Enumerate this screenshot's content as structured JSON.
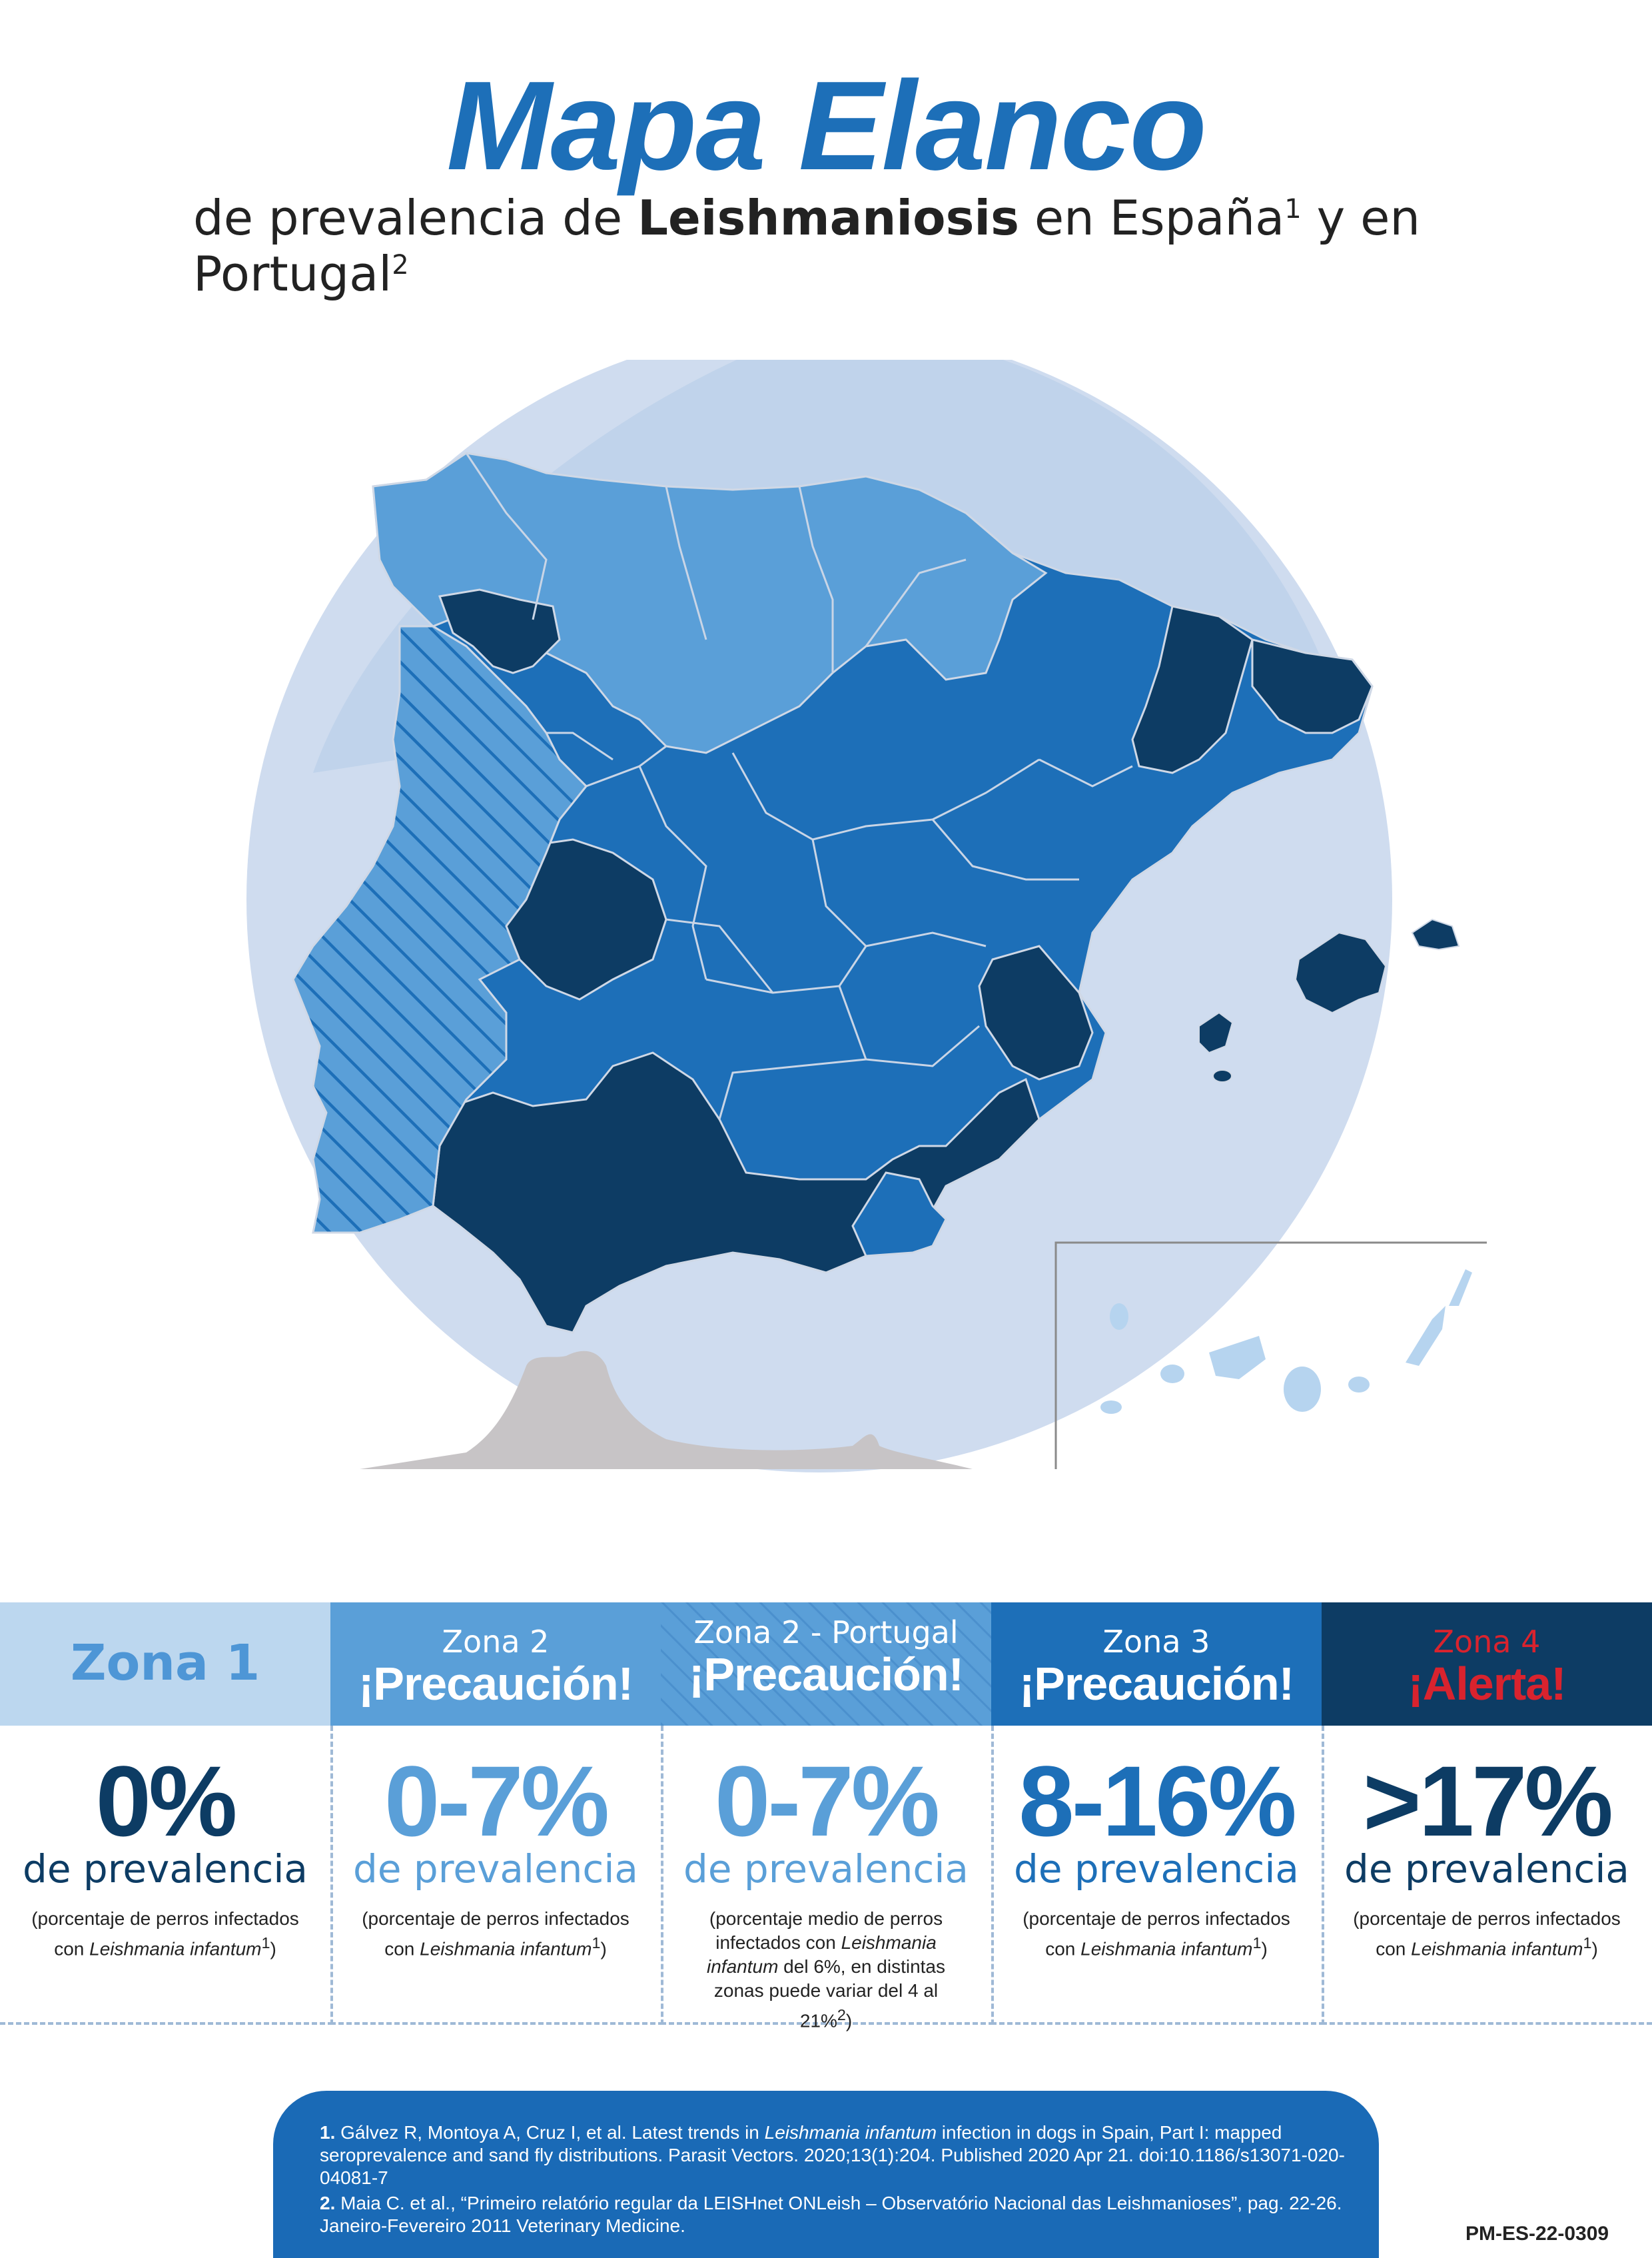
{
  "header": {
    "title": "Mapa Elanco",
    "subtitle_pre": "de prevalencia de ",
    "subtitle_bold": "Leishmaniosis",
    "subtitle_mid": " en España",
    "sup1": "1",
    "subtitle_mid2": "  y en Portugal",
    "sup2": "2"
  },
  "colors": {
    "zone1": "#bcd7ef",
    "zone2": "#5a9fd8",
    "zone3": "#1d6fb8",
    "zone4": "#0d3c64",
    "alert_red": "#d9232e",
    "sea_circle": "#cfdcef",
    "africa": "#c7c4c6",
    "canary": "#b6d4ef"
  },
  "zones": [
    {
      "name": "Zona 1",
      "alert": "",
      "value": "0%",
      "prev": "de prevalencia",
      "note_a": "(porcentaje de perros infectados",
      "note_b": "con ",
      "note_i": "Leishmania infantum",
      "note_sup": "1",
      "note_c": ")"
    },
    {
      "name": "Zona 2",
      "alert": "¡Precaución!",
      "value": "0-7%",
      "prev": "de prevalencia",
      "note_a": "(porcentaje de perros infectados",
      "note_b": "con ",
      "note_i": "Leishmania infantum",
      "note_sup": "1",
      "note_c": ")"
    },
    {
      "name": "Zona 2 - Portugal",
      "alert": "¡Precaución!",
      "value": "0-7%",
      "prev": "de prevalencia",
      "note_a": "(porcentaje medio de perros",
      "note_b": "infectados con ",
      "note_i": "Leishmania infantum",
      "note_c": " del 6%, en distintas zonas puede variar del 4 al 21%",
      "note_sup": "2",
      "note_d": ")"
    },
    {
      "name": "Zona 3",
      "alert": "¡Precaución!",
      "value": "8-16%",
      "prev": "de prevalencia",
      "note_a": "(porcentaje de perros infectados",
      "note_b": "con ",
      "note_i": "Leishmania infantum",
      "note_sup": "1",
      "note_c": ")"
    },
    {
      "name": "Zona 4",
      "alert": "¡Alerta!",
      "value": ">17%",
      "prev": "de prevalencia",
      "note_a": "(porcentaje de perros infectados",
      "note_b": "con ",
      "note_i": "Leishmania infantum",
      "note_sup": "1",
      "note_c": ")"
    }
  ],
  "references": {
    "r1_num": "1.",
    "r1_a": " Gálvez R, Montoya A, Cruz I, et al. Latest trends in ",
    "r1_i": "Leishmania infantum",
    "r1_b": " infection in dogs in Spain, Part I: mapped seroprevalence and sand fly distributions. Parasit Vectors. 2020;13(1):204. Published 2020 Apr 21. doi:10.1186/s13071-020-04081-7",
    "r2_num": "2.",
    "r2_a": " Maia C. et al., “Primeiro relatório regular da LEISHnet ONLeish – Observatório Nacional das Leishmanioses”, pag. 22-26. Janeiro-Fevereiro 2011 Veterinary Medicine."
  },
  "code": "PM-ES-22-0309"
}
